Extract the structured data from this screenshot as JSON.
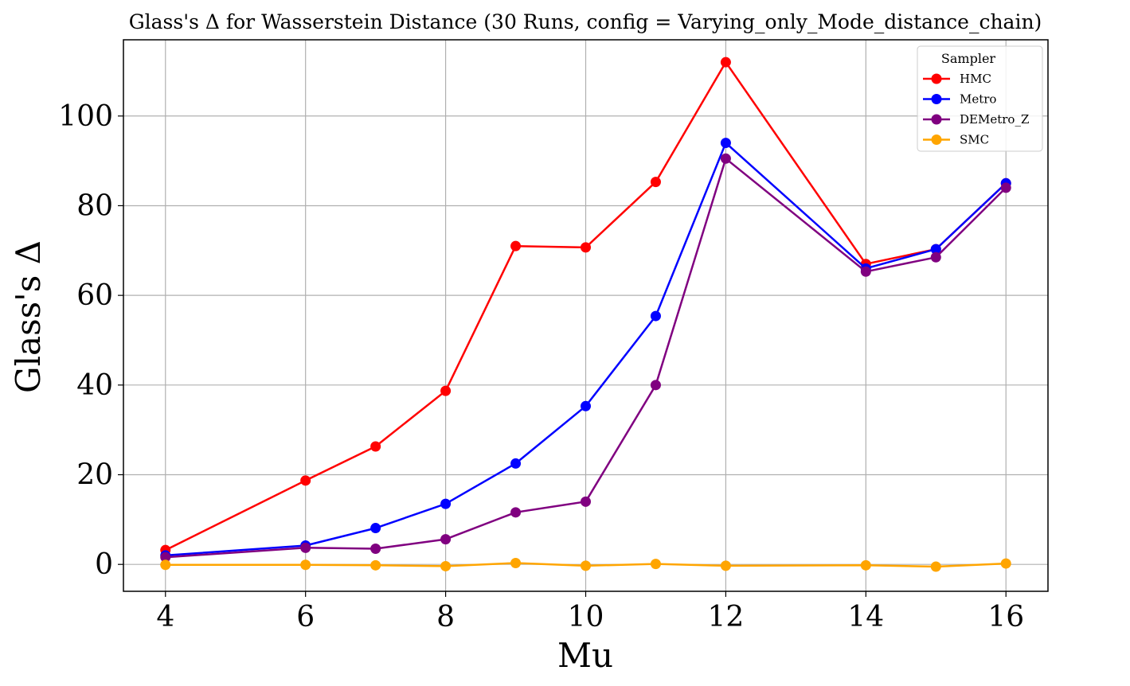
{
  "chart_data": {
    "type": "line",
    "title": "Glass's Δ for Wasserstein Distance (30 Runs, config = Varying_only_Mode_distance_chain)",
    "xlabel": "Mu",
    "ylabel": "Glass's Δ",
    "xlim": [
      3.4,
      16.6
    ],
    "ylim": [
      -6,
      117
    ],
    "xticks": [
      4,
      6,
      8,
      10,
      12,
      14,
      16
    ],
    "yticks": [
      0,
      20,
      40,
      60,
      80,
      100
    ],
    "grid": true,
    "legend": {
      "title": "Sampler",
      "placement": "top-right"
    },
    "x": [
      4,
      6,
      7,
      8,
      9,
      10,
      11,
      12,
      14,
      15,
      16
    ],
    "series": [
      {
        "name": "HMC",
        "color": "#ff0000",
        "values": [
          3.2,
          18.7,
          26.3,
          38.7,
          71.0,
          70.7,
          85.3,
          112.0,
          67.0,
          70.3,
          85.0
        ]
      },
      {
        "name": "Metro",
        "color": "#0000ff",
        "values": [
          2.0,
          4.2,
          8.1,
          13.5,
          22.5,
          35.3,
          55.4,
          94.0,
          66.0,
          70.3,
          85.0
        ]
      },
      {
        "name": "DEMetro_Z",
        "color": "#800080",
        "values": [
          1.6,
          3.7,
          3.5,
          5.6,
          11.6,
          14.0,
          40.0,
          90.5,
          65.3,
          68.5,
          84.0
        ]
      },
      {
        "name": "SMC",
        "color": "#ffa500",
        "values": [
          -0.1,
          -0.1,
          -0.2,
          -0.4,
          0.3,
          -0.3,
          0.1,
          -0.3,
          -0.2,
          -0.5,
          0.2
        ]
      }
    ]
  }
}
